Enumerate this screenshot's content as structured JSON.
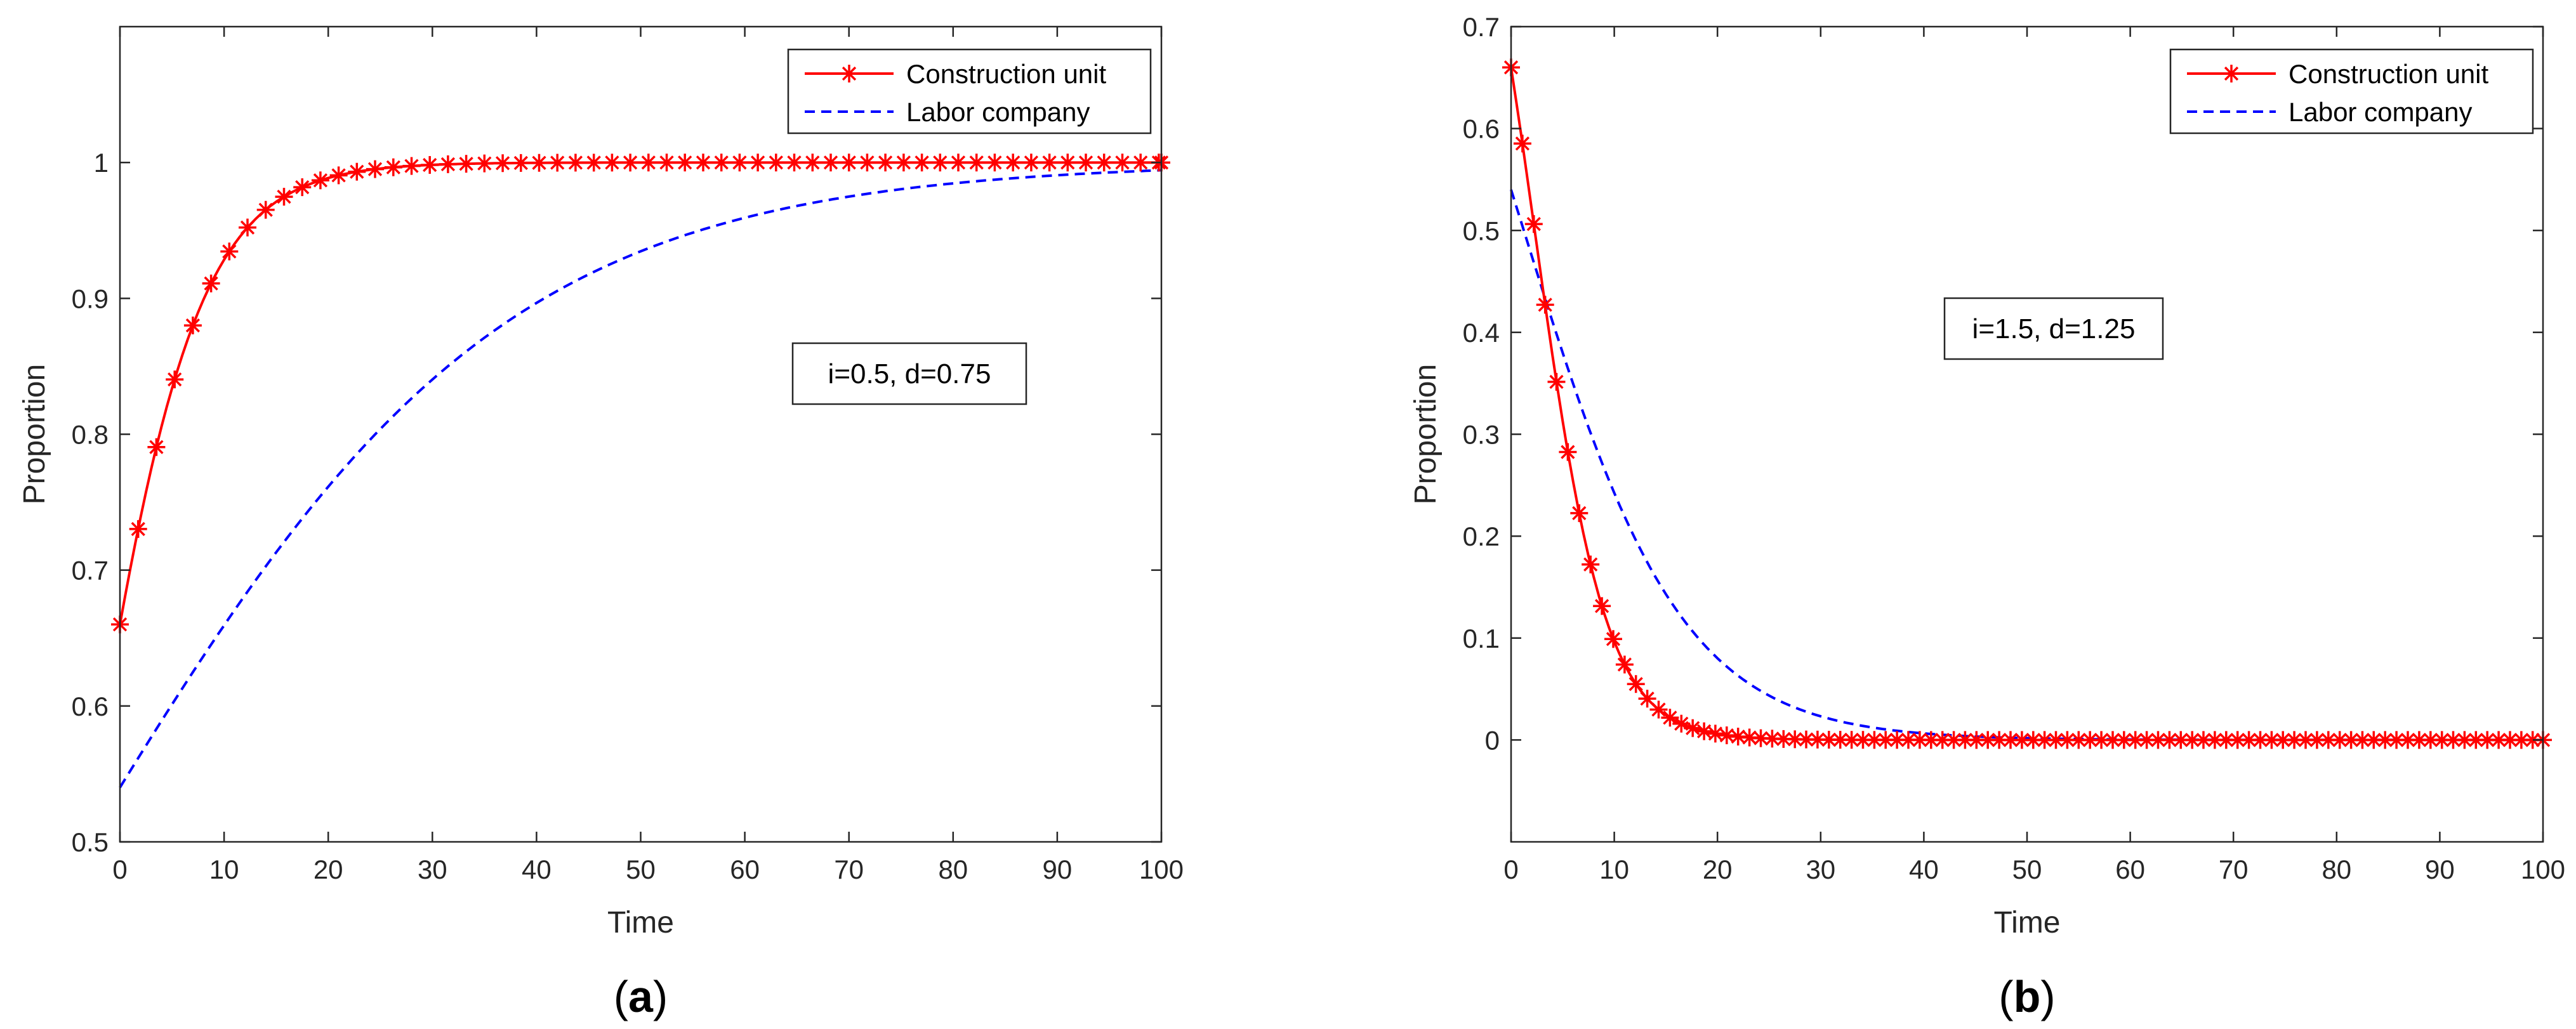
{
  "chart_data": [
    {
      "id": "a",
      "type": "line",
      "caption_open": "(",
      "caption_letter": "a",
      "caption_close": ")",
      "xlabel": "Time",
      "ylabel": "Proportion",
      "xlim": [
        0,
        100
      ],
      "ylim": [
        0.5,
        1.1
      ],
      "xticks": [
        0,
        10,
        20,
        30,
        40,
        50,
        60,
        70,
        80,
        90,
        100
      ],
      "yticks": [
        0.5,
        0.6,
        0.7,
        0.8,
        0.9,
        1
      ],
      "ytick_labels": [
        "0.5",
        "0.6",
        "0.7",
        "0.8",
        "0.9",
        "1"
      ],
      "grid": false,
      "legend_position": "top-right",
      "annotation": "i=0.5, d=0.75",
      "annotation_anchor": [
        73,
        0.901
      ],
      "series": [
        {
          "name": "Construction unit",
          "color": "#ff0000",
          "line": "solid",
          "marker": "asterisk",
          "model": "logistic",
          "x0": 0.66,
          "k": 0.19,
          "target": 1,
          "marker_step": 1.75
        },
        {
          "name": "Labor company",
          "color": "#0000ff",
          "line": "dashed",
          "marker": "none",
          "model": "logistic",
          "x0": 0.54,
          "k": 0.05,
          "target": 1
        }
      ]
    },
    {
      "id": "b",
      "type": "line",
      "caption_open": "(",
      "caption_letter": "b",
      "caption_close": ")",
      "xlabel": "Time",
      "ylabel": "Proportion",
      "xlim": [
        0,
        100
      ],
      "ylim": [
        -0.1,
        0.7
      ],
      "xticks": [
        0,
        10,
        20,
        30,
        40,
        50,
        60,
        70,
        80,
        90,
        100
      ],
      "yticks": [
        0,
        0.1,
        0.2,
        0.3,
        0.4,
        0.5,
        0.6,
        0.7
      ],
      "ytick_labels": [
        "0",
        "0.1",
        "0.2",
        "0.3",
        "0.4",
        "0.5",
        "0.6",
        "0.7"
      ],
      "grid": false,
      "legend_position": "top-right",
      "annotation": "i=1.5, d=1.25",
      "annotation_anchor": [
        43.5,
        0.4
      ],
      "series": [
        {
          "name": "Construction unit",
          "color": "#ff0000",
          "line": "solid",
          "marker": "asterisk",
          "model": "logistic",
          "x0": 0.66,
          "k": -0.29,
          "target": 0,
          "marker_step": 1.1
        },
        {
          "name": "Labor company",
          "color": "#0000ff",
          "line": "dashed",
          "marker": "none",
          "model": "logistic",
          "x0": 0.54,
          "k": -0.13,
          "target": 0
        }
      ]
    }
  ]
}
